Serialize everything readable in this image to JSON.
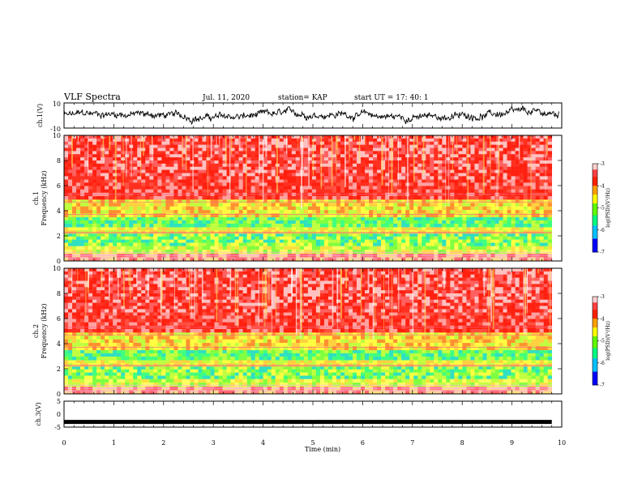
{
  "header": {
    "title": "VLF Spectra",
    "date": "Jul. 11, 2020",
    "station": "station= KAP",
    "start": "start UT =  17: 40: 1"
  },
  "chart_data": [
    {
      "type": "line",
      "ylabel": "ch.1(V)",
      "ylim": [
        -10,
        10
      ],
      "yticks": [
        "10",
        "-10"
      ],
      "xlim": [
        0,
        10
      ],
      "description_free": true
    },
    {
      "type": "heatmap",
      "ylabel": "ch.1\nFrequency (kHz)",
      "ylabel_lines": [
        "ch.1",
        "Frequency (kHz)"
      ],
      "ylim": [
        0,
        10
      ],
      "yticks": [
        "0",
        "2",
        "4",
        "6",
        "8",
        "10"
      ],
      "xlim": [
        0,
        9.8
      ],
      "colorbar": {
        "label": "log(PSD)(V²/Hz)",
        "range": [
          -7,
          -3
        ],
        "ticks": [
          "-3",
          "-4",
          "-5",
          "-6",
          "-7"
        ]
      }
    },
    {
      "type": "heatmap",
      "ylabel_lines": [
        "ch.2",
        "Frequency (kHz)"
      ],
      "ylim": [
        0,
        10
      ],
      "yticks": [
        "0",
        "2",
        "4",
        "6",
        "8",
        "10"
      ],
      "xlim": [
        0,
        9.8
      ],
      "colorbar": {
        "label": "log(PSD)(V²/Hz)",
        "range": [
          -7,
          -3
        ],
        "ticks": [
          "-3",
          "-4",
          "-5",
          "-6",
          "-7"
        ]
      }
    },
    {
      "type": "line",
      "ylabel": "ch.3(V)",
      "ylim": [
        -5,
        5
      ],
      "yticks": [
        "5",
        "0",
        "-5"
      ],
      "values_constant": -3
    }
  ],
  "xaxis": {
    "label": "Time (min)",
    "ticks": [
      "0",
      "1",
      "2",
      "3",
      "4",
      "5",
      "6",
      "7",
      "8",
      "9",
      "10"
    ],
    "range": [
      0,
      10
    ]
  },
  "colors": {
    "bar": "#000000"
  }
}
